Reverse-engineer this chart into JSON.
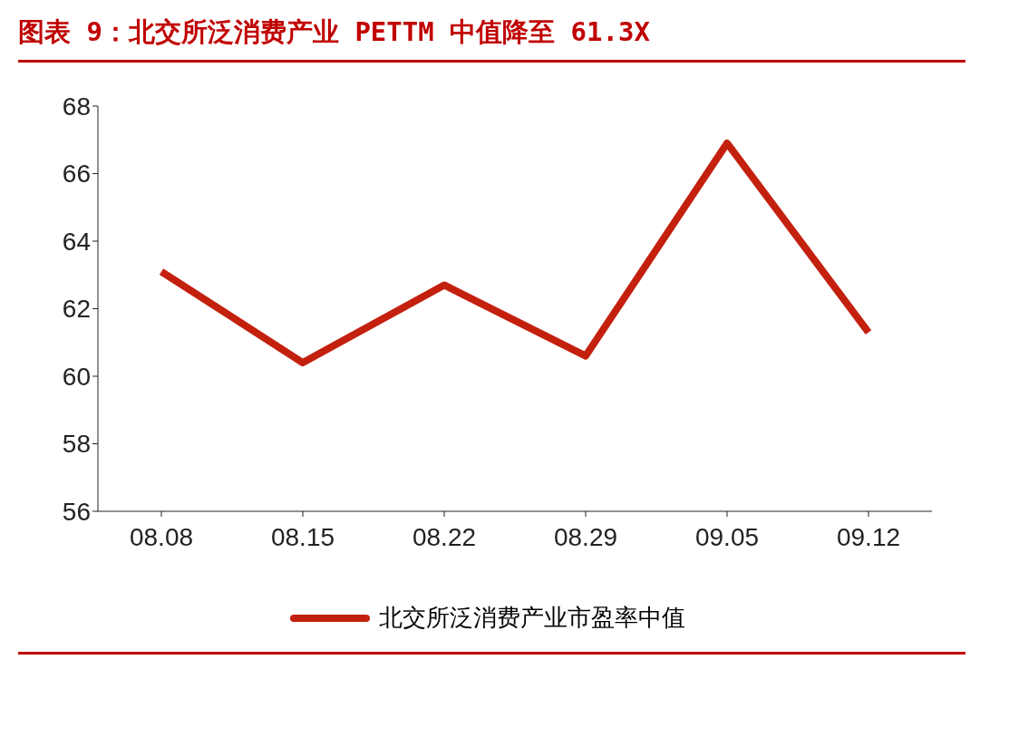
{
  "chart_data": {
    "type": "line",
    "title": "图表 9：北交所泛消费产业 PETTM 中值降至 61.3X",
    "categories": [
      "08.08",
      "08.15",
      "08.22",
      "08.29",
      "09.05",
      "09.12"
    ],
    "series": [
      {
        "name": "北交所泛消费产业市盈率中值",
        "color": "#c4200e",
        "values": [
          63.1,
          60.4,
          62.7,
          60.6,
          66.9,
          61.3
        ]
      }
    ],
    "ylim": [
      56,
      68
    ],
    "yticks": [
      56,
      58,
      60,
      62,
      64,
      66,
      68
    ],
    "grid": false,
    "legend": "bottom",
    "marker": "none",
    "line_style": "solid"
  }
}
